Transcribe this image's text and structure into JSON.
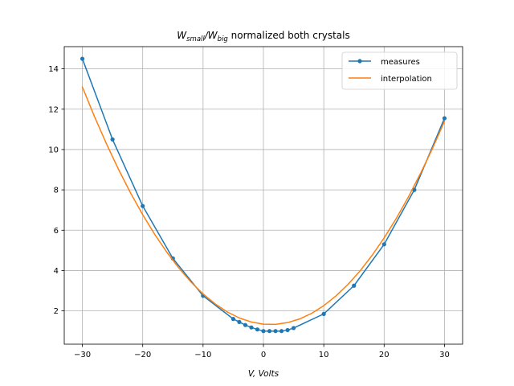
{
  "chart_data": {
    "type": "line",
    "title": {
      "part1_base": "W",
      "part1_sub": "small",
      "slash": "/",
      "part2_base": "W",
      "part2_sub": "big",
      "rest": " normalized both crystals"
    },
    "xlabel": "V, Volts",
    "ylabel": "",
    "xlim": [
      -33,
      33
    ],
    "ylim": [
      0.35,
      15.1
    ],
    "xticks": [
      -30,
      -20,
      -10,
      0,
      10,
      20,
      30
    ],
    "yticks": [
      2,
      4,
      6,
      8,
      10,
      12,
      14
    ],
    "grid": true,
    "legend_position": "top-right",
    "series": [
      {
        "name": "measures",
        "color": "#1f77b4",
        "marker": "circle",
        "x": [
          -30,
          -25,
          -20,
          -15,
          -10,
          -5,
          -4,
          -3,
          -2,
          -1,
          0,
          1,
          2,
          3,
          4,
          5,
          10,
          15,
          20,
          25,
          30
        ],
        "y": [
          14.5,
          10.5,
          7.2,
          4.6,
          2.75,
          1.6,
          1.45,
          1.3,
          1.18,
          1.08,
          1.0,
          1.0,
          1.0,
          1.0,
          1.05,
          1.15,
          1.85,
          3.25,
          5.3,
          8.0,
          11.55
        ]
      },
      {
        "name": "interpolation",
        "color": "#ff7f0e",
        "marker": "none",
        "x": [
          -30,
          -28,
          -26,
          -24,
          -22,
          -20,
          -18,
          -16,
          -14,
          -12,
          -10,
          -8,
          -6,
          -4,
          -2,
          0,
          2,
          4,
          6,
          8,
          10,
          12,
          14,
          16,
          18,
          20,
          22,
          24,
          26,
          28,
          30
        ],
        "y": [
          13.1,
          11.64,
          10.28,
          9.01,
          7.84,
          6.77,
          5.79,
          4.91,
          4.12,
          3.43,
          2.84,
          2.35,
          1.95,
          1.65,
          1.45,
          1.34,
          1.33,
          1.42,
          1.6,
          1.88,
          2.26,
          2.74,
          3.31,
          3.98,
          4.75,
          5.62,
          6.58,
          7.64,
          8.8,
          10.05,
          11.4
        ]
      }
    ]
  }
}
